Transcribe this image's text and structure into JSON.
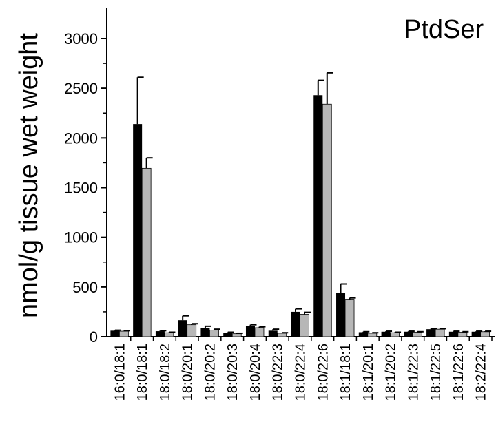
{
  "chart_data": {
    "type": "bar",
    "title": "PtdSer",
    "xlabel": "",
    "ylabel": "nmol/g tissue wet weight",
    "ylim": [
      0,
      3300
    ],
    "yticks": [
      0,
      500,
      1000,
      1500,
      2000,
      2500,
      3000
    ],
    "grid": false,
    "categories": [
      "16:0/18:1",
      "18:0/18:1",
      "18:0/18:2",
      "18:0/20:1",
      "18:0/20:2",
      "18:0/20:3",
      "18:0/20:4",
      "18:0/22:3",
      "18:0/22:4",
      "18:0/22:6",
      "18:1/18:1",
      "18:1/20:1",
      "18:1/20:2",
      "18:1/22:3",
      "18:1/22:5",
      "18:1/22:6",
      "18:2/22:4"
    ],
    "series": [
      {
        "color": "#000000",
        "values": [
          60,
          2140,
          55,
          165,
          85,
          40,
          105,
          60,
          250,
          2430,
          440,
          45,
          50,
          50,
          75,
          50,
          50
        ],
        "errors": [
          5,
          470,
          5,
          45,
          20,
          5,
          15,
          15,
          30,
          150,
          90,
          5,
          5,
          5,
          5,
          5,
          5
        ]
      },
      {
        "color": "#b7b7b7",
        "values": [
          55,
          1695,
          40,
          120,
          65,
          30,
          90,
          35,
          225,
          2340,
          370,
          35,
          40,
          45,
          75,
          45,
          50
        ],
        "errors": [
          5,
          105,
          5,
          10,
          10,
          5,
          10,
          5,
          20,
          315,
          20,
          5,
          5,
          5,
          5,
          5,
          5
        ]
      }
    ]
  }
}
